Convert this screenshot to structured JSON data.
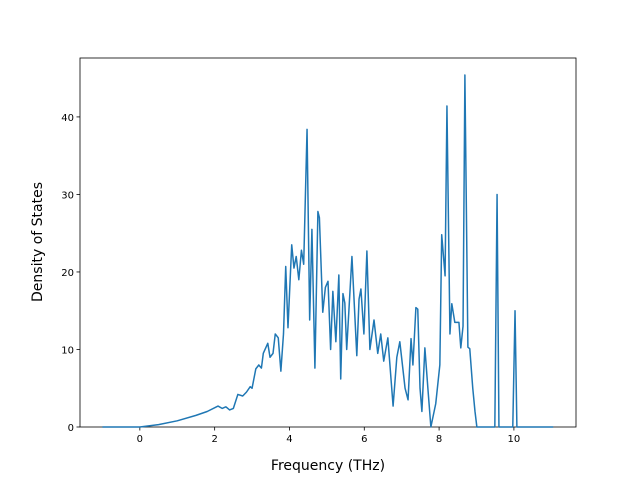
{
  "chart_data": {
    "type": "line",
    "x_label": "Frequency (THz)",
    "y_label": "Density of States",
    "x": [
      -1,
      0,
      0.5,
      1,
      1.5,
      1.8,
      2.09,
      2.2,
      2.3,
      2.4,
      2.5,
      2.62,
      2.75,
      2.85,
      2.95,
      3.0,
      3.1,
      3.18,
      3.25,
      3.3,
      3.42,
      3.48,
      3.56,
      3.62,
      3.7,
      3.77,
      3.84,
      3.9,
      3.96,
      4.06,
      4.12,
      4.18,
      4.25,
      4.32,
      4.38,
      4.47,
      4.54,
      4.6,
      4.68,
      4.76,
      4.8,
      4.89,
      4.96,
      5.03,
      5.1,
      5.16,
      5.24,
      5.32,
      5.37,
      5.43,
      5.48,
      5.53,
      5.67,
      5.8,
      5.86,
      5.91,
      5.99,
      6.07,
      6.15,
      6.26,
      6.36,
      6.44,
      6.52,
      6.63,
      6.77,
      6.87,
      6.95,
      7.09,
      7.17,
      7.25,
      7.3,
      7.38,
      7.43,
      7.49,
      7.54,
      7.62,
      7.7,
      7.78,
      7.91,
      8.02,
      8.07,
      8.16,
      8.21,
      8.29,
      8.34,
      8.42,
      8.53,
      8.58,
      8.64,
      8.69,
      8.77,
      8.82,
      8.9,
      8.96,
      9.01,
      9.49,
      9.55,
      9.6,
      9.97,
      10.03,
      10.08,
      11.05
    ],
    "series": [
      {
        "color": "#1f77b4",
        "values": [
          0,
          0,
          0.3,
          0.8,
          1.5,
          2.0,
          2.7,
          2.4,
          2.6,
          2.2,
          2.4,
          4.2,
          4.0,
          4.5,
          5.2,
          5.0,
          7.5,
          8.0,
          7.6,
          9.5,
          10.8,
          9.0,
          9.5,
          12.0,
          11.5,
          7.2,
          12.0,
          20.7,
          12.8,
          23.5,
          20.5,
          22.0,
          19.0,
          22.8,
          21.0,
          38.4,
          13.8,
          25.5,
          7.6,
          27.8,
          27.0,
          14.8,
          18.0,
          18.8,
          10.0,
          17.5,
          11.0,
          19.6,
          6.2,
          17.2,
          16.0,
          10.0,
          22.0,
          9.2,
          16.5,
          17.8,
          12.0,
          22.7,
          10.0,
          13.8,
          9.5,
          12.0,
          8.5,
          11.5,
          2.7,
          9.0,
          11.0,
          5.0,
          3.5,
          11.4,
          8.0,
          15.4,
          15.2,
          5.0,
          2.0,
          10.2,
          5.0,
          0,
          3.0,
          8.0,
          24.8,
          19.5,
          41.4,
          12.0,
          15.9,
          13.5,
          13.5,
          10.2,
          13.0,
          45.4,
          10.3,
          10.1,
          5.0,
          2.0,
          0,
          0,
          30.0,
          0,
          0,
          15.0,
          0,
          0
        ]
      }
    ],
    "xlim": [
      -1.6,
      11.66
    ],
    "xticks": [
      0,
      2,
      4,
      6,
      8,
      10
    ],
    "ylim": [
      0,
      47.6
    ],
    "yticks": [
      0,
      10,
      20,
      30,
      40
    ]
  }
}
